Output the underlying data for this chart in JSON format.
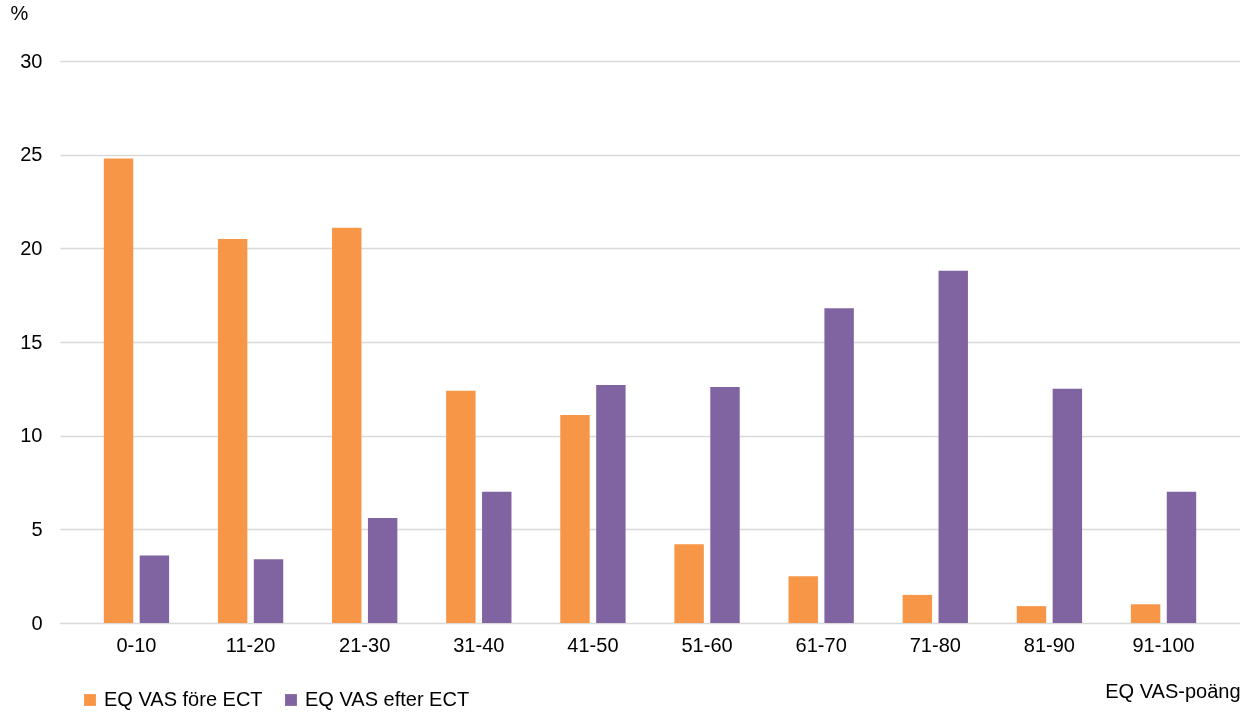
{
  "chart_data": {
    "type": "bar",
    "xlabel": "EQ VAS-poäng",
    "ylabel": "%",
    "categories": [
      "0-10",
      "11-20",
      "21-30",
      "31-40",
      "41-50",
      "51-60",
      "61-70",
      "71-80",
      "81-90",
      "91-100"
    ],
    "series": [
      {
        "name": "EQ VAS före ECT",
        "color": "#f79646",
        "values": [
          24.8,
          20.5,
          21.1,
          12.4,
          11.1,
          4.2,
          2.5,
          1.5,
          0.9,
          1.0
        ]
      },
      {
        "name": "EQ VAS efter ECT",
        "color": "#8064a2",
        "values": [
          3.6,
          3.4,
          5.6,
          7.0,
          12.7,
          12.6,
          16.8,
          18.8,
          12.5,
          7.0
        ]
      }
    ],
    "ylim": [
      0,
      30
    ],
    "yticks": [
      0,
      5,
      10,
      15,
      20,
      25,
      30
    ],
    "grid": "y",
    "legend": "bottom left"
  }
}
